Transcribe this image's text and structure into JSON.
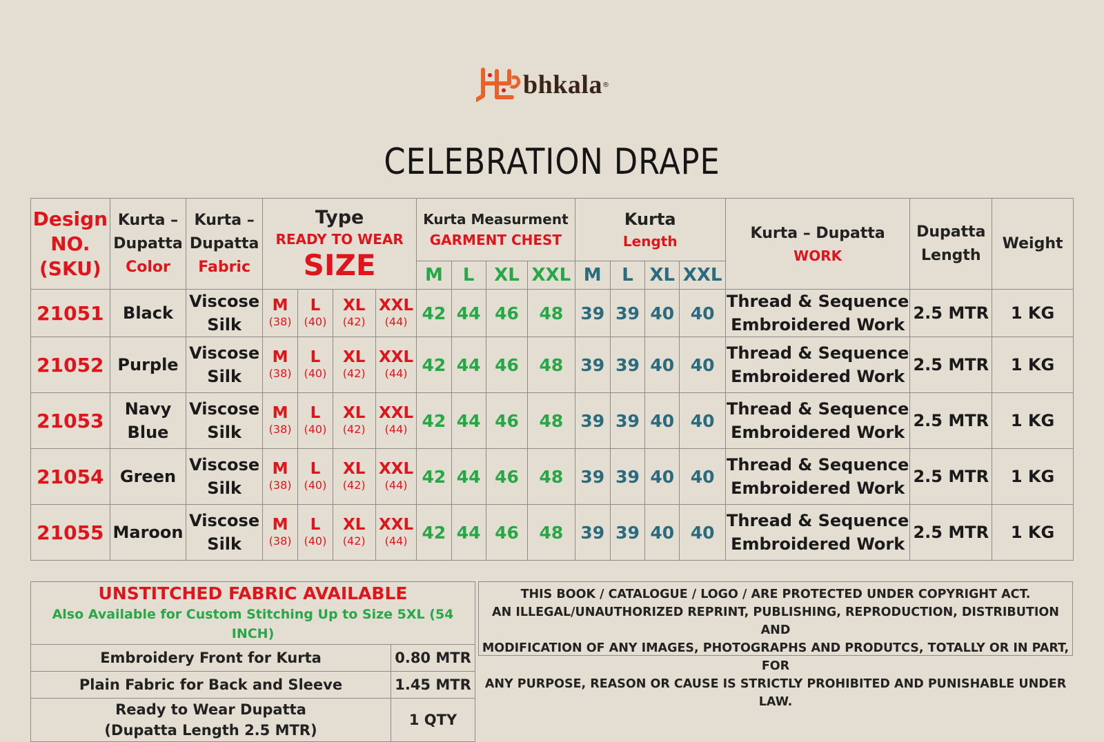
{
  "brand": {
    "logo_text": "bhkala",
    "logo_mark": "swastik-shubh-mark"
  },
  "title": "CELEBRATION DRAPE",
  "header": {
    "design_no": [
      "Design",
      "NO.",
      "(SKU)"
    ],
    "color": [
      "Kurta –",
      "Dupatta",
      "Color"
    ],
    "fabric": [
      "Kurta –",
      "Dupatta",
      "Fabric"
    ],
    "type": "Type",
    "ready_to_wear": "READY TO WEAR",
    "size": "SIZE",
    "measurement": "Kurta Measurment",
    "garment_chest": "GARMENT CHEST",
    "kurta": "Kurta",
    "length": "Length",
    "work": [
      "Kurta – Dupatta",
      "WORK"
    ],
    "dupatta_length": [
      "Dupatta",
      "Length"
    ],
    "weight": "Weight",
    "chest_sizes": [
      "M",
      "L",
      "XL",
      "XXL"
    ],
    "length_sizes": [
      "M",
      "L",
      "XL",
      "XXL"
    ]
  },
  "size_labels": [
    {
      "label": "M",
      "num": "(38)"
    },
    {
      "label": "L",
      "num": "(40)"
    },
    {
      "label": "XL",
      "num": "(42)"
    },
    {
      "label": "XXL",
      "num": "(44)"
    }
  ],
  "rows": [
    {
      "sku": "21051",
      "color": [
        "Black"
      ],
      "fabric": [
        "Viscose",
        "Silk"
      ],
      "chest": [
        "42",
        "44",
        "46",
        "48"
      ],
      "length": [
        "39",
        "39",
        "40",
        "40"
      ],
      "work": [
        "Thread & Sequence",
        "Embroidered Work"
      ],
      "dupatta_length": "2.5 MTR",
      "weight": "1 KG"
    },
    {
      "sku": "21052",
      "color": [
        "Purple"
      ],
      "fabric": [
        "Viscose",
        "Silk"
      ],
      "chest": [
        "42",
        "44",
        "46",
        "48"
      ],
      "length": [
        "39",
        "39",
        "40",
        "40"
      ],
      "work": [
        "Thread & Sequence",
        "Embroidered Work"
      ],
      "dupatta_length": "2.5 MTR",
      "weight": "1 KG"
    },
    {
      "sku": "21053",
      "color": [
        "Navy",
        "Blue"
      ],
      "fabric": [
        "Viscose",
        "Silk"
      ],
      "chest": [
        "42",
        "44",
        "46",
        "48"
      ],
      "length": [
        "39",
        "39",
        "40",
        "40"
      ],
      "work": [
        "Thread & Sequence",
        "Embroidered Work"
      ],
      "dupatta_length": "2.5 MTR",
      "weight": "1 KG"
    },
    {
      "sku": "21054",
      "color": [
        "Green"
      ],
      "fabric": [
        "Viscose",
        "Silk"
      ],
      "chest": [
        "42",
        "44",
        "46",
        "48"
      ],
      "length": [
        "39",
        "39",
        "40",
        "40"
      ],
      "work": [
        "Thread & Sequence",
        "Embroidered Work"
      ],
      "dupatta_length": "2.5 MTR",
      "weight": "1 KG"
    },
    {
      "sku": "21055",
      "color": [
        "Maroon"
      ],
      "fabric": [
        "Viscose",
        "Silk"
      ],
      "chest": [
        "42",
        "44",
        "46",
        "48"
      ],
      "length": [
        "39",
        "39",
        "40",
        "40"
      ],
      "work": [
        "Thread & Sequence",
        "Embroidered Work"
      ],
      "dupatta_length": "2.5 MTR",
      "weight": "1 KG"
    }
  ],
  "unstitched": {
    "title": "UNSTITCHED FABRIC AVAILABLE",
    "subtitle": "Also Available for Custom Stitching Up to Size 5XL (54 INCH)",
    "items": [
      {
        "label": "Embroidery Front for Kurta",
        "value": "0.80 MTR"
      },
      {
        "label": "Plain Fabric for Back and Sleeve",
        "value": "1.45 MTR"
      },
      {
        "label": "Ready to Wear Dupatta (Dupatta Length 2.5 MTR)",
        "label_lines": [
          "Ready to Wear Dupatta",
          "(Dupatta Length 2.5 MTR)"
        ],
        "value": "1 QTY"
      }
    ]
  },
  "copyright": [
    "THIS BOOK / CATALOGUE  / LOGO / ARE  PROTECTED UNDER COPYRIGHT ACT.",
    "AN ILLEGAL/UNAUTHORIZED REPRINT, PUBLISHING, REPRODUCTION, DISTRIBUTION AND",
    "MODIFICATION OF ANY IMAGES, PHOTOGRAPHS AND PRODUTCS,  TOTALLY OR IN PART, FOR",
    "ANY PURPOSE, REASON OR CAUSE IS STRICTLY PROHIBITED AND PUNISHABLE UNDER LAW."
  ],
  "colors": {
    "background": "#e4ddd2",
    "red": "#e0141b",
    "green": "#27a846",
    "teal": "#2a6b7e",
    "border": "#8b8b8b"
  }
}
